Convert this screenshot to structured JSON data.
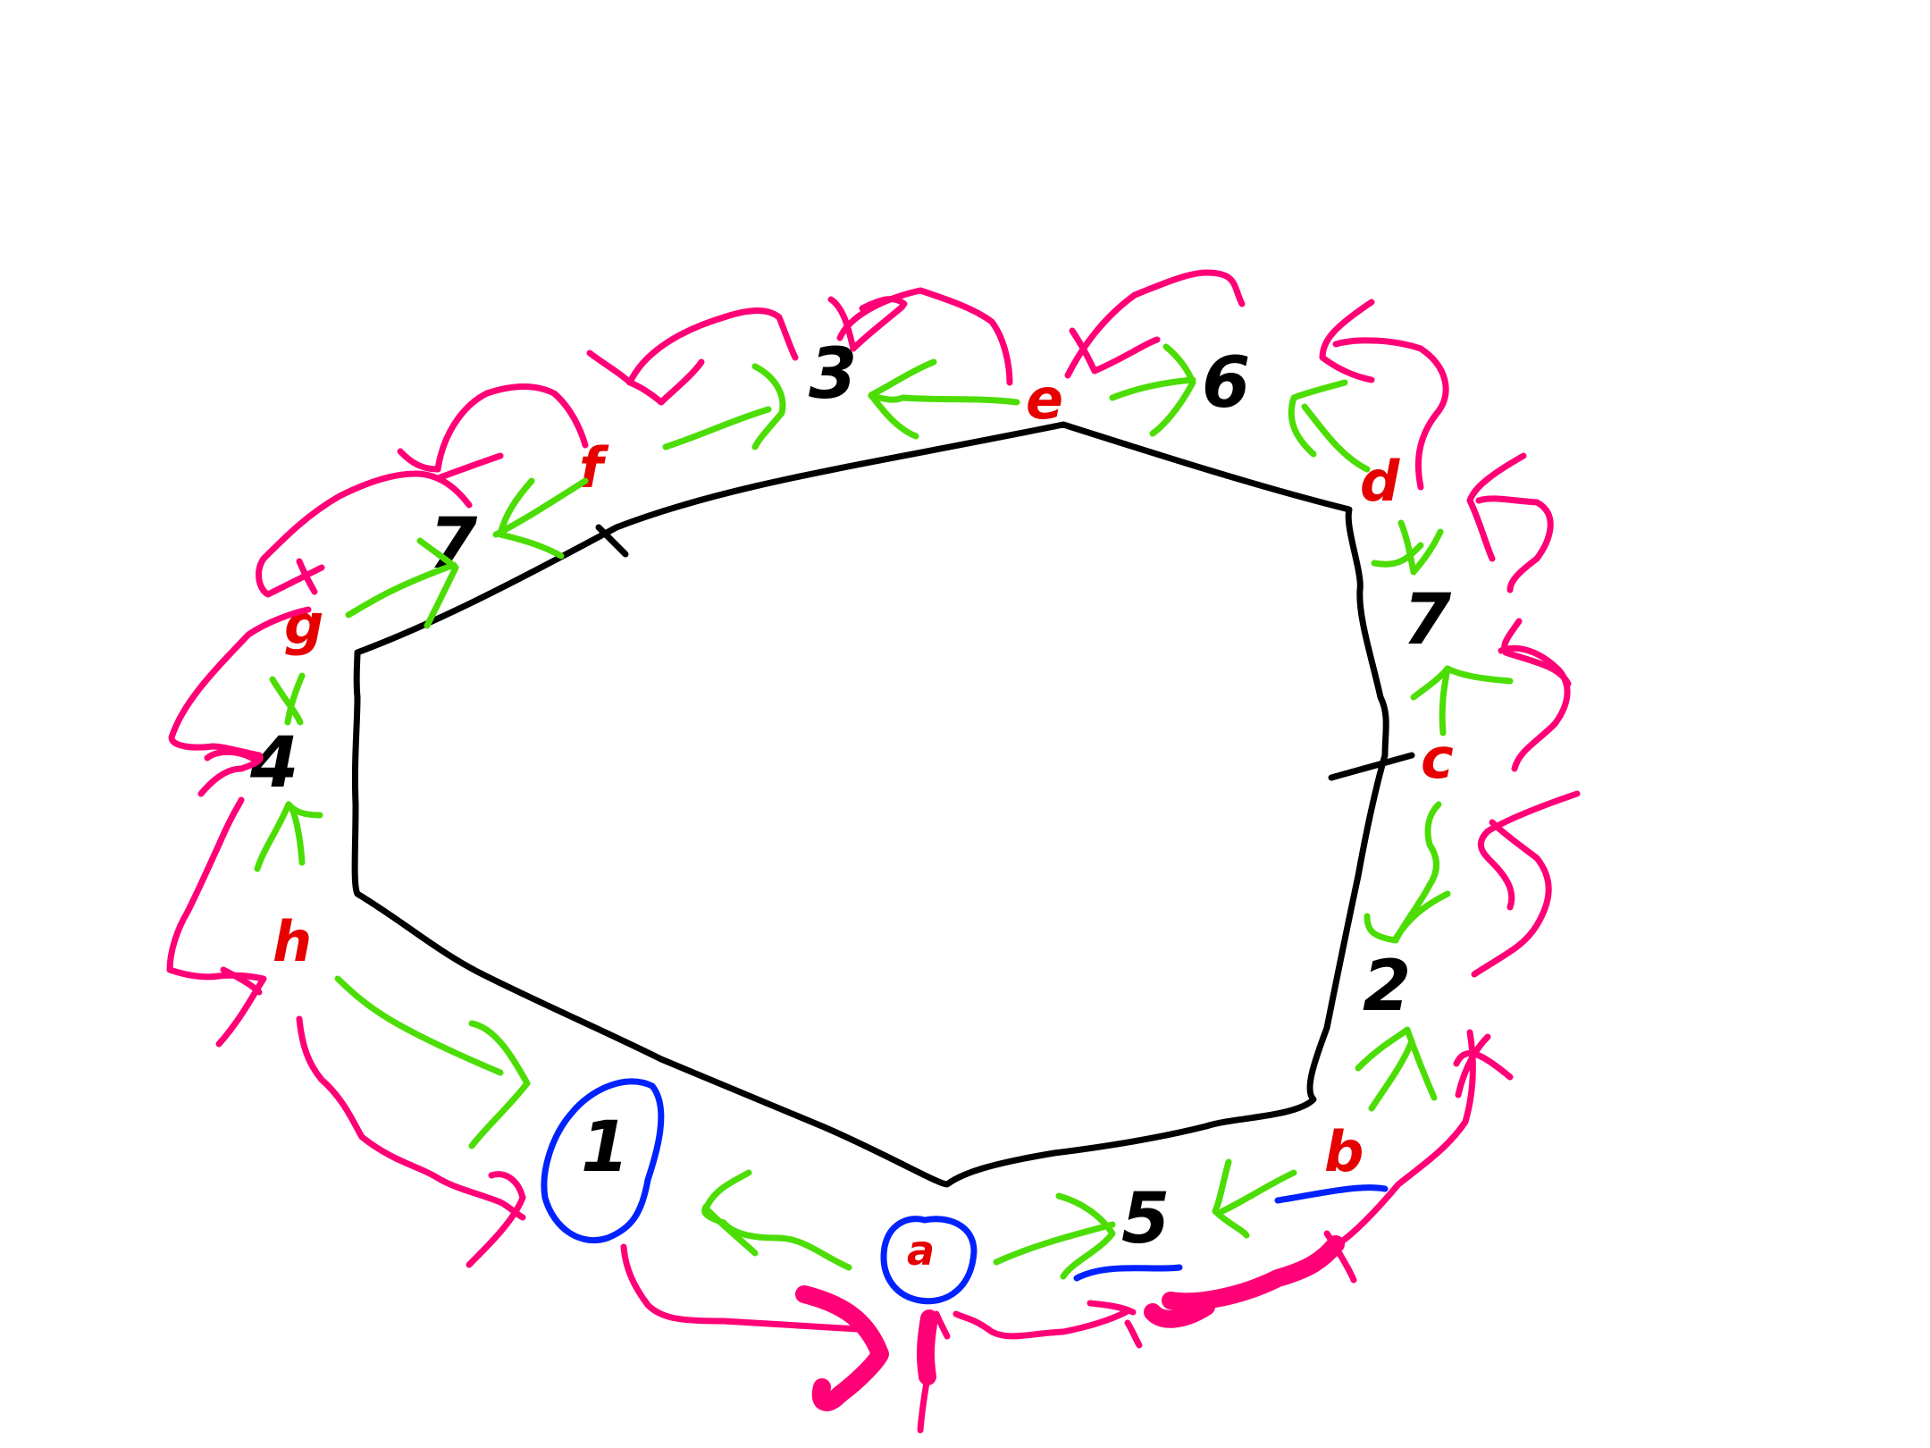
{
  "diagram": {
    "type": "hand-drawn directed cycle around an octagonal loop",
    "node_labels": {
      "top": "3",
      "top_right": "6",
      "upper_left": "7",
      "right_upper": "7",
      "left": "4",
      "right_lower": "2",
      "bottom_right": "5",
      "bottom_left_circled": "1"
    },
    "edge_labels": {
      "top_left_red": "f",
      "top_red": "e",
      "right_top_red": "d",
      "right_mid_red": "c",
      "bottom_right_red": "b",
      "bottom_center_red": "a",
      "left_lower_red": "h",
      "left_upper_red": "g"
    },
    "colors": {
      "outline": "#000000",
      "inner_arrows": "#4cdd05",
      "outer_arrows": "#ff0077",
      "edge_letters": "#e60000",
      "highlight": "#0022ff",
      "background": "#ffffff"
    }
  }
}
